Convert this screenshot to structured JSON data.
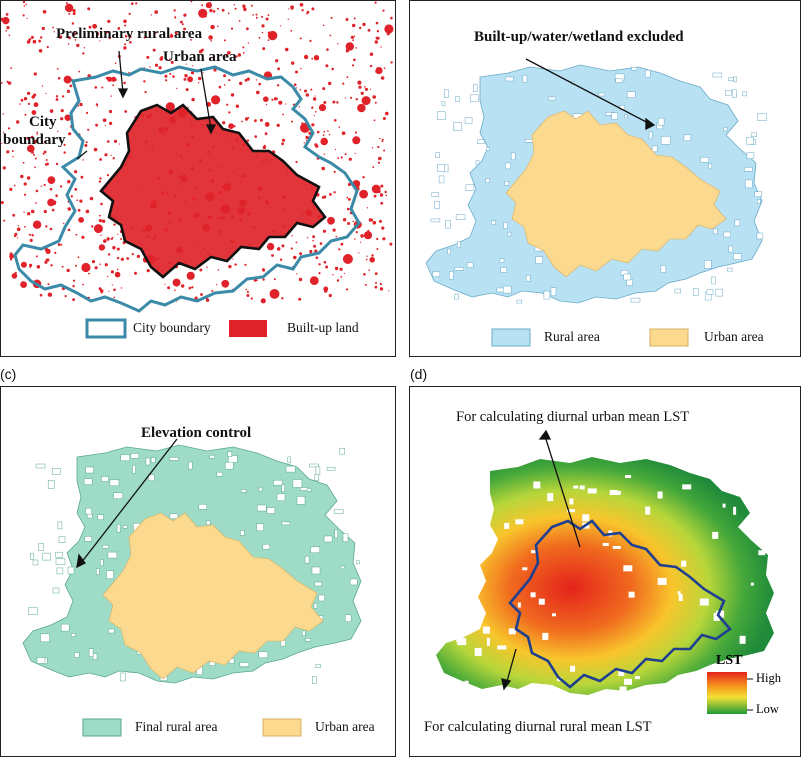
{
  "panels": {
    "a": {
      "letter": "",
      "annotations": {
        "preliminary_rural": "Preliminary rural area",
        "urban": "Urban area",
        "city_boundary_1": "City",
        "city_boundary_2": "boundary"
      },
      "legend": [
        {
          "label": "City boundary",
          "style": "outline",
          "color": "#3a8aa8"
        },
        {
          "label": "Built-up land",
          "style": "fill",
          "color": "#e0232a"
        }
      ]
    },
    "b": {
      "letter": "",
      "annotations": {
        "excluded": "Built-up/water/wetland excluded"
      },
      "legend": [
        {
          "label": "Rural area",
          "color": "#b8e2f4"
        },
        {
          "label": "Urban area",
          "color": "#fbd98f"
        }
      ]
    },
    "c": {
      "letter": "(c)",
      "annotations": {
        "elevation": "Elevation control"
      },
      "legend": [
        {
          "label": "Final rural area",
          "color": "#9fdcc8"
        },
        {
          "label": "Urban area",
          "color": "#fbd98f"
        }
      ]
    },
    "d": {
      "letter": "(d)",
      "annotations": {
        "urban_lst": "For calculating diurnal urban mean LST",
        "rural_lst": "For calculating diurnal rural mean LST"
      },
      "legend": {
        "title": "LST",
        "high": "High",
        "low": "Low"
      }
    }
  },
  "colors": {
    "builtup": "#e0232a",
    "city_boundary": "#3a8aa8",
    "rural": "#b8e2f4",
    "urban": "#fbd98f",
    "final_rural": "#9fdcc8",
    "urban_outline_d": "#1f3f8f"
  }
}
